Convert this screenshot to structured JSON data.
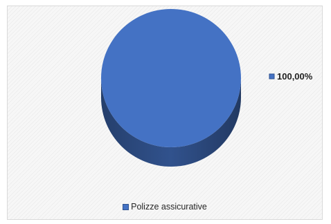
{
  "chart_data": {
    "type": "pie",
    "title": "",
    "slices": [
      {
        "name": "Polizze assicurative",
        "value": 100.0,
        "label": "100,00%",
        "color": "#4472c4"
      }
    ],
    "legend_position": "bottom",
    "three_d": true
  }
}
